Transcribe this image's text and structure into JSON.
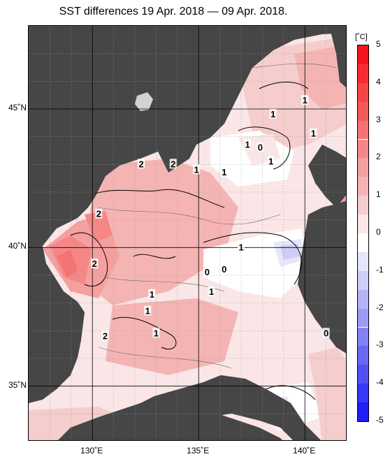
{
  "title": "SST differences 19 Apr. 2018 — 09 Apr. 2018.",
  "map": {
    "lat_range": [
      33.0,
      48.0
    ],
    "lon_range": [
      127.0,
      142.0
    ],
    "lat_ticks": [
      {
        "value": 45,
        "label": "45˚N"
      },
      {
        "value": 40,
        "label": "40˚N"
      },
      {
        "value": 35,
        "label": "35˚N"
      }
    ],
    "lon_ticks": [
      {
        "value": 130,
        "label": "130˚E"
      },
      {
        "value": 135,
        "label": "135˚E"
      },
      {
        "value": 140,
        "label": "140˚E"
      }
    ],
    "land_color": "#464646",
    "grid_color": "#000000"
  },
  "contour_labels": [
    {
      "text": "1",
      "lon": 140.0,
      "lat": 45.3
    },
    {
      "text": "1",
      "lon": 138.5,
      "lat": 44.8
    },
    {
      "text": "1",
      "lon": 140.4,
      "lat": 44.1
    },
    {
      "text": "1",
      "lon": 137.3,
      "lat": 43.7
    },
    {
      "text": "0",
      "lon": 137.9,
      "lat": 43.6
    },
    {
      "text": "1",
      "lon": 138.4,
      "lat": 43.1
    },
    {
      "text": "2",
      "lon": 132.3,
      "lat": 43.0
    },
    {
      "text": "2",
      "lon": 133.8,
      "lat": 43.0
    },
    {
      "text": "1",
      "lon": 134.9,
      "lat": 42.8
    },
    {
      "text": "1",
      "lon": 136.2,
      "lat": 42.7
    },
    {
      "text": "2",
      "lon": 130.3,
      "lat": 41.2
    },
    {
      "text": "1",
      "lon": 137.0,
      "lat": 40.0
    },
    {
      "text": "2",
      "lon": 130.1,
      "lat": 39.4
    },
    {
      "text": "0",
      "lon": 135.4,
      "lat": 39.1
    },
    {
      "text": "0",
      "lon": 136.2,
      "lat": 39.2
    },
    {
      "text": "1",
      "lon": 135.6,
      "lat": 38.4
    },
    {
      "text": "1",
      "lon": 132.8,
      "lat": 38.3
    },
    {
      "text": "1",
      "lon": 132.6,
      "lat": 37.7
    },
    {
      "text": "1",
      "lon": 133.0,
      "lat": 36.9
    },
    {
      "text": "2",
      "lon": 130.6,
      "lat": 36.8
    },
    {
      "text": "0",
      "lon": 141.0,
      "lat": 36.9
    }
  ],
  "colorbar": {
    "unit": "[˚C]",
    "min": -5,
    "max": 5,
    "ticks": [
      "5",
      "4",
      "3",
      "2",
      "1",
      "0",
      "-1",
      "-2",
      "-3",
      "-4",
      "-5"
    ],
    "segments": [
      {
        "from": 4.5,
        "to": 5.0,
        "color": "#f5141e"
      },
      {
        "from": 4.0,
        "to": 4.5,
        "color": "#f52d32"
      },
      {
        "from": 3.5,
        "to": 4.0,
        "color": "#f54646"
      },
      {
        "from": 3.0,
        "to": 3.5,
        "color": "#f55a5a"
      },
      {
        "from": 2.5,
        "to": 3.0,
        "color": "#f57373"
      },
      {
        "from": 2.0,
        "to": 2.5,
        "color": "#f58787"
      },
      {
        "from": 1.5,
        "to": 2.0,
        "color": "#f5a0a0"
      },
      {
        "from": 1.0,
        "to": 1.5,
        "color": "#f5b4b4"
      },
      {
        "from": 0.5,
        "to": 1.0,
        "color": "#f5cdcd"
      },
      {
        "from": 0.0,
        "to": 0.5,
        "color": "#fae6e6"
      },
      {
        "from": -0.5,
        "to": 0.0,
        "color": "#ffffff"
      },
      {
        "from": -1.0,
        "to": -0.5,
        "color": "#e6e6fa"
      },
      {
        "from": -1.5,
        "to": -1.0,
        "color": "#cdcdf5"
      },
      {
        "from": -2.0,
        "to": -1.5,
        "color": "#b4b4f5"
      },
      {
        "from": -2.5,
        "to": -2.0,
        "color": "#9b9bf5"
      },
      {
        "from": -3.0,
        "to": -2.5,
        "color": "#8282f5"
      },
      {
        "from": -3.5,
        "to": -3.0,
        "color": "#6969f5"
      },
      {
        "from": -4.0,
        "to": -3.5,
        "color": "#5050f5"
      },
      {
        "from": -4.5,
        "to": -4.0,
        "color": "#3737f5"
      },
      {
        "from": -5.0,
        "to": -4.5,
        "color": "#1e1ef5"
      }
    ]
  }
}
